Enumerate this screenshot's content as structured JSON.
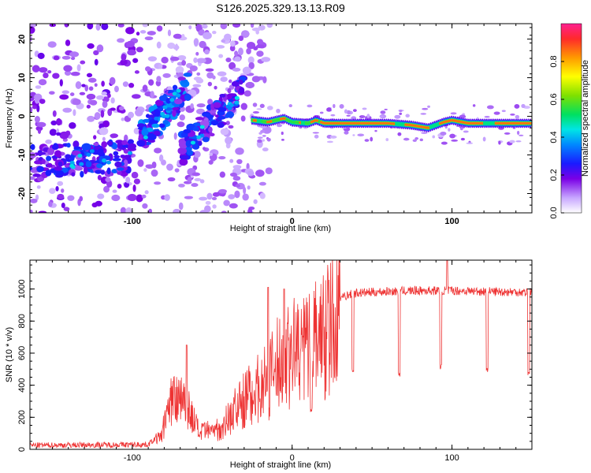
{
  "figure": {
    "title": "S126.2025.329.13.13.R09"
  },
  "chart_data": [
    {
      "type": "heatmap",
      "xlabel": "Height of straight line (km)",
      "ylabel": "Frequency (Hz)",
      "xlim": [
        -164,
        150
      ],
      "ylim": [
        -25,
        24
      ],
      "xticks": [
        -100,
        0,
        100
      ],
      "yticks": [
        -20,
        -10,
        0,
        10,
        20
      ],
      "colorbar": {
        "label": "Normalized spectral amplitude",
        "range": [
          0,
          1
        ],
        "ticks": [
          0.0,
          0.2,
          0.4,
          0.6,
          0.8
        ],
        "tick_labels": [
          "0.0",
          "0.2",
          "0.4",
          "0.6",
          "0.8"
        ]
      },
      "ridge": {
        "description": "strong narrowband signal near -1.5 Hz for heights above about -25 km",
        "points": [
          [
            -25,
            -1
          ],
          [
            -15,
            -1.5
          ],
          [
            -10,
            -1
          ],
          [
            -5,
            -0.5
          ],
          [
            0,
            -1.5
          ],
          [
            10,
            -1.8
          ],
          [
            15,
            -1
          ],
          [
            20,
            -1.8
          ],
          [
            40,
            -1.8
          ],
          [
            60,
            -1.8
          ],
          [
            75,
            -2.3
          ],
          [
            85,
            -3
          ],
          [
            95,
            -1.5
          ],
          [
            100,
            -1
          ],
          [
            110,
            -1.8
          ],
          [
            130,
            -1.8
          ],
          [
            150,
            -1.8
          ]
        ]
      },
      "bands": [
        {
          "name": "lower band",
          "x": [
            -164,
            -100
          ],
          "y_center": [
            -12,
            -10
          ],
          "amplitude": 0.3
        },
        {
          "name": "rising band A",
          "x": [
            -95,
            -65
          ],
          "y_center": [
            -6,
            8
          ],
          "amplitude": 0.35
        },
        {
          "name": "rising band B",
          "x": [
            -70,
            -30
          ],
          "y_center": [
            -9,
            7
          ],
          "amplitude": 0.3
        }
      ]
    },
    {
      "type": "line",
      "xlabel": "Height of straight line (km)",
      "ylabel": "SNR (10 * v/v)",
      "xlim": [
        -164,
        150
      ],
      "ylim": [
        0,
        1180
      ],
      "xticks": [
        -100,
        0,
        100
      ],
      "yticks": [
        0,
        200,
        400,
        600,
        800,
        1000
      ],
      "series": [
        {
          "name": "SNR",
          "color": "#ee3333",
          "envelope": [
            [
              -164,
              25
            ],
            [
              -90,
              30
            ],
            [
              -82,
              100
            ],
            [
              -75,
              380
            ],
            [
              -70,
              420
            ],
            [
              -65,
              300
            ],
            [
              -58,
              120
            ],
            [
              -45,
              150
            ],
            [
              -35,
              300
            ],
            [
              -25,
              420
            ],
            [
              -15,
              500
            ],
            [
              -8,
              640
            ],
            [
              0,
              720
            ],
            [
              10,
              760
            ],
            [
              20,
              860
            ],
            [
              30,
              950
            ],
            [
              40,
              975
            ],
            [
              60,
              985
            ],
            [
              80,
              990
            ],
            [
              100,
              990
            ],
            [
              120,
              985
            ],
            [
              150,
              980
            ]
          ],
          "dips": [
            [
              12,
              230
            ],
            [
              38,
              480
            ],
            [
              67,
              450
            ],
            [
              93,
              500
            ],
            [
              122,
              480
            ],
            [
              148,
              460
            ]
          ],
          "spikes": [
            [
              -66,
              650
            ],
            [
              -15,
              1010
            ],
            [
              -5,
              1000
            ],
            [
              97,
              1180
            ]
          ]
        }
      ]
    }
  ],
  "colors": {
    "line": "#ee3333",
    "axis": "#000000",
    "background": "#ffffff"
  }
}
